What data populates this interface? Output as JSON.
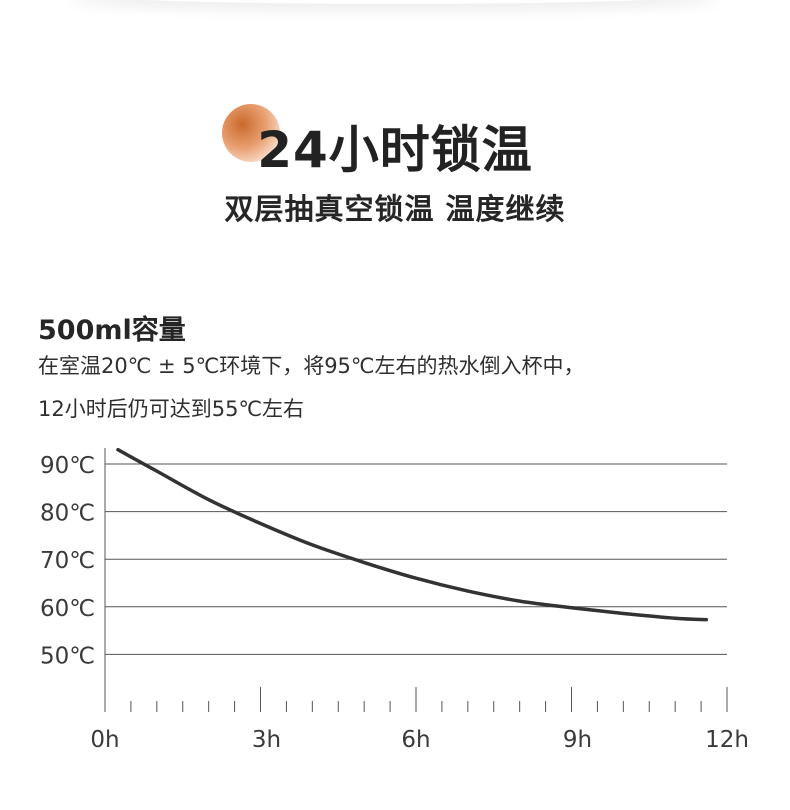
{
  "heading": {
    "title": "24小时锁温",
    "subtitle": "双层抽真空锁温 温度继续"
  },
  "info": {
    "capacity": "500ml容量",
    "description_line1": "在室温20℃ ± 5℃环境下，将95℃左右的热水倒入杯中，",
    "description_line2": "12小时后仍可达到55℃左右"
  },
  "colors": {
    "accent": "#e9a071",
    "curve": "#333333",
    "gridline": "#555555"
  },
  "chart_data": {
    "type": "line",
    "title": "",
    "xlabel": "",
    "ylabel": "",
    "x_ticks": [
      "0h",
      "3h",
      "6h",
      "9h",
      "12h"
    ],
    "y_ticks": [
      "90℃",
      "80℃",
      "70℃",
      "60℃",
      "50℃"
    ],
    "y_tick_values": [
      90,
      80,
      70,
      60,
      50
    ],
    "xlim": [
      0,
      12
    ],
    "ylim": [
      45,
      93
    ],
    "grid": true,
    "series": [
      {
        "x": [
          0.25,
          1,
          2,
          3,
          4,
          5,
          6,
          7,
          8,
          9,
          10,
          11,
          11.6
        ],
        "values": [
          93,
          88.5,
          82.5,
          77.5,
          73,
          69.3,
          66,
          63.3,
          61.2,
          59.8,
          58.6,
          57.6,
          57.3
        ]
      }
    ]
  }
}
